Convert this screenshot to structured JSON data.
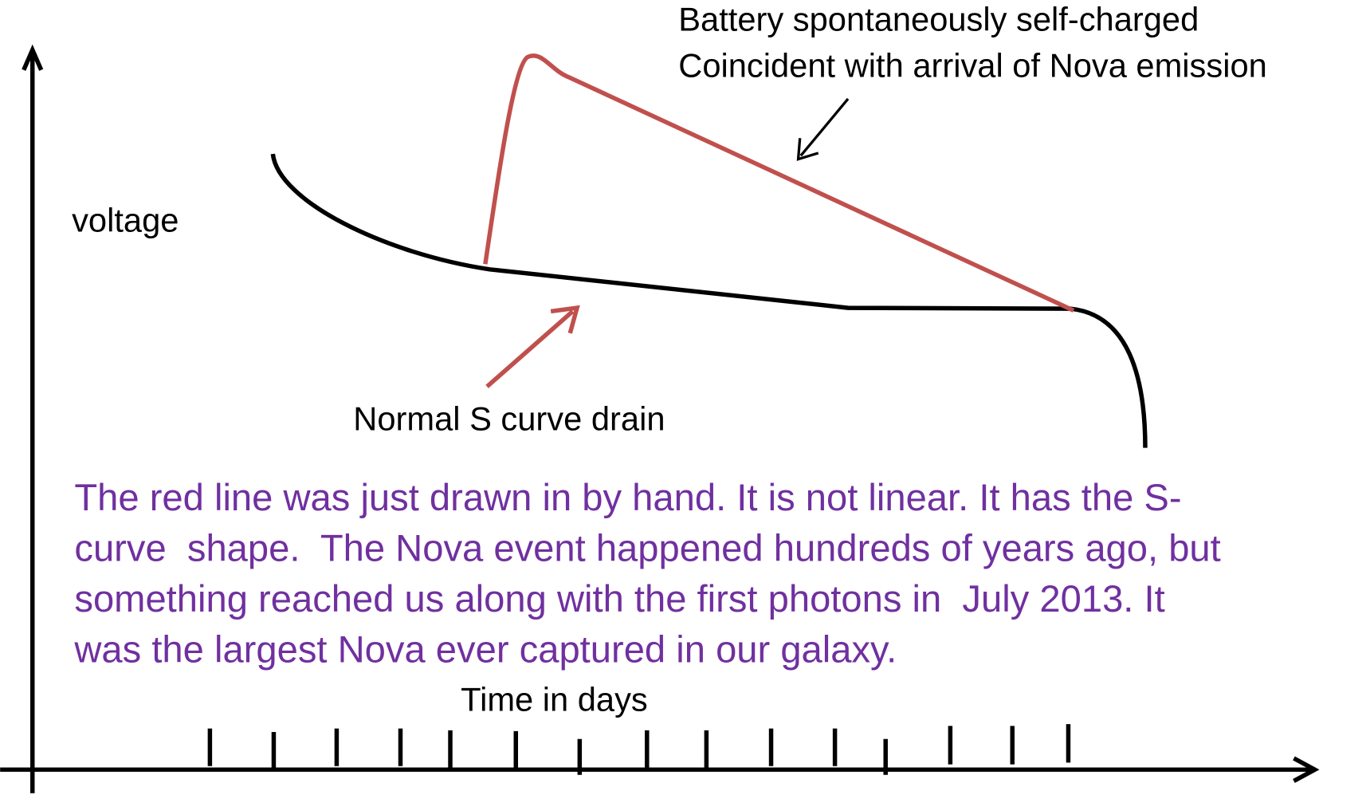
{
  "annotations": {
    "top": [
      "Battery spontaneously self-charged",
      "Coincident with arrival of Nova emission"
    ],
    "bottom": "Normal S curve drain"
  },
  "axes": {
    "y_label": "voltage",
    "x_label": "Time in days"
  },
  "note": [
    "The red line was just drawn in by hand. It is not linear. It has the S-",
    "curve  shape.  The Nova event happened hundreds of years ago, but",
    "something reached us along with the first photons in  July 2013. It",
    "was the largest Nova ever captured in our galaxy."
  ]
}
